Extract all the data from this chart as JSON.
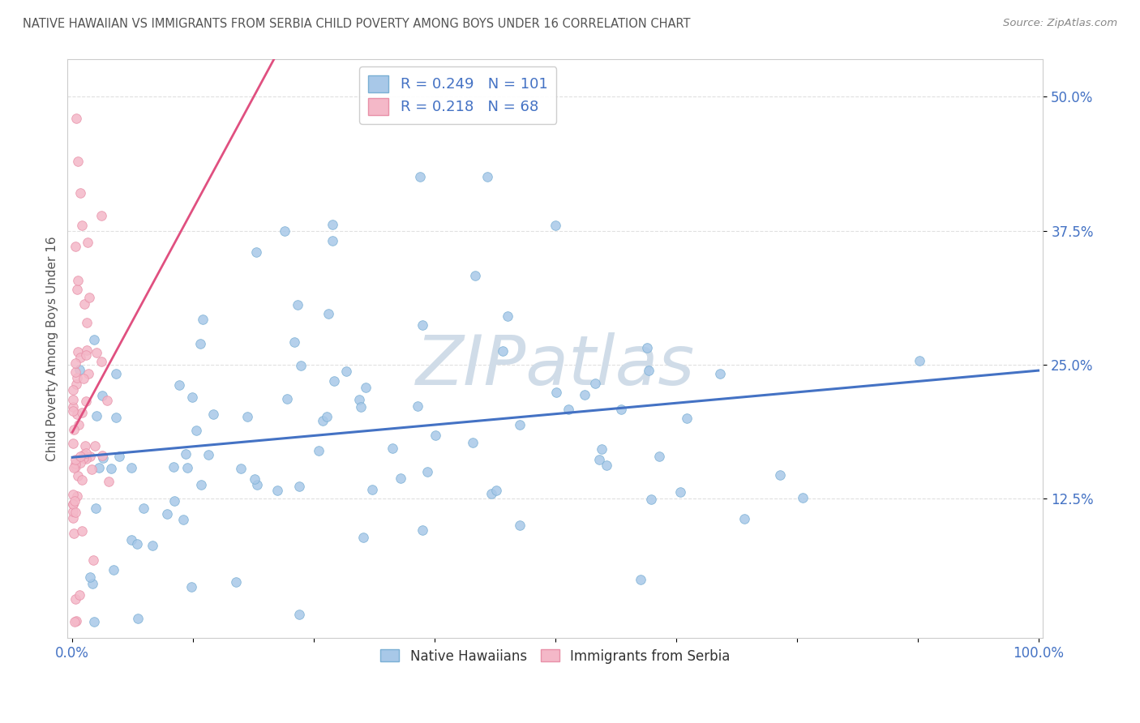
{
  "title": "NATIVE HAWAIIAN VS IMMIGRANTS FROM SERBIA CHILD POVERTY AMONG BOYS UNDER 16 CORRELATION CHART",
  "source": "Source: ZipAtlas.com",
  "ylabel": "Child Poverty Among Boys Under 16",
  "watermark": "ZIPatlas",
  "legend_blue_R": "0.249",
  "legend_blue_N": "101",
  "legend_pink_R": "0.218",
  "legend_pink_N": "68",
  "legend_label_blue": "Native Hawaiians",
  "legend_label_pink": "Immigrants from Serbia",
  "blue_color": "#a8c8e8",
  "blue_edge_color": "#7aafd4",
  "pink_color": "#f4b8c8",
  "pink_edge_color": "#e890a8",
  "blue_line_color": "#4472c4",
  "pink_line_color": "#e05080",
  "axis_label_color": "#4472c4",
  "title_color": "#555555",
  "source_color": "#888888",
  "ylabel_color": "#555555",
  "grid_color": "#cccccc",
  "spine_color": "#cccccc",
  "watermark_color": "#d0dce8"
}
